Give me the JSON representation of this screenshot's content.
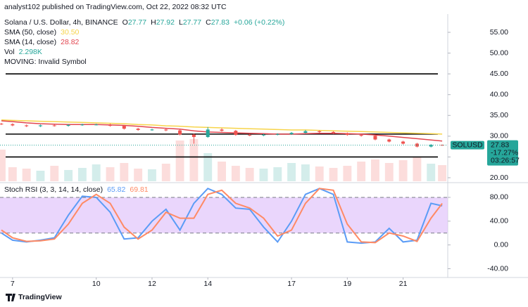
{
  "header": "analyst102 published on TradingView.com, Oct 22, 2022 08:32 UTC",
  "footer": "TradingView",
  "chart_data": [
    {
      "type": "candlestick",
      "title": "Solana / U.S. Dollar, 4h, BINANCE",
      "ohlc_legend": [
        {
          "key": "O",
          "value": 27.77
        },
        {
          "key": "H",
          "value": 27.92
        },
        {
          "key": "L",
          "value": 27.77
        },
        {
          "key": "C",
          "value": 27.83
        }
      ],
      "change_label": "+0.06 (+0.22%)",
      "x": [
        6.6,
        7,
        7.5,
        8,
        8.5,
        9,
        9.5,
        10,
        10.5,
        11,
        11.5,
        12,
        12.5,
        13,
        13.5,
        14,
        14.5,
        15,
        15.5,
        16,
        16.5,
        17,
        17.5,
        18,
        18.5,
        19,
        19.5,
        20,
        20.5,
        21,
        21.5,
        22,
        22.4
      ],
      "open": [
        33.0,
        32.9,
        32.6,
        32.4,
        32.6,
        32.5,
        32.7,
        32.8,
        32.8,
        32.5,
        31.8,
        31.5,
        31.6,
        31.4,
        30.4,
        29.8,
        31.6,
        31.3,
        30.3,
        30.2,
        30.4,
        30.5,
        30.8,
        31.2,
        31.0,
        30.7,
        30.3,
        30.1,
        29.2,
        28.7,
        28.2,
        27.5,
        27.9
      ],
      "high": [
        33.2,
        33.1,
        32.8,
        32.8,
        32.8,
        32.9,
        33.0,
        33.0,
        33.0,
        32.7,
        32.0,
        31.8,
        31.8,
        31.6,
        30.6,
        32.2,
        31.9,
        31.5,
        30.5,
        30.6,
        30.7,
        31.0,
        31.5,
        31.4,
        31.2,
        30.9,
        30.5,
        30.3,
        29.4,
        28.9,
        28.4,
        28.1,
        28.0
      ],
      "low": [
        32.7,
        32.4,
        32.2,
        32.2,
        32.3,
        32.3,
        32.5,
        32.6,
        32.3,
        31.6,
        31.3,
        31.3,
        31.2,
        30.2,
        28.2,
        29.6,
        31.1,
        30.1,
        30.0,
        30.0,
        30.2,
        30.3,
        30.6,
        30.8,
        30.5,
        30.1,
        29.9,
        29.0,
        28.5,
        28.0,
        27.3,
        27.3,
        27.7
      ],
      "close": [
        32.9,
        32.6,
        32.4,
        32.6,
        32.5,
        32.7,
        32.8,
        32.8,
        32.5,
        31.8,
        31.5,
        31.6,
        31.4,
        30.4,
        29.8,
        31.6,
        31.3,
        30.3,
        30.2,
        30.4,
        30.5,
        30.8,
        31.2,
        31.0,
        30.7,
        30.3,
        30.1,
        29.2,
        28.7,
        28.2,
        27.5,
        27.9,
        27.83
      ],
      "up_color": "#26a69a",
      "down_color": "#ef5350",
      "series": [
        {
          "name": "SMA (50, close)",
          "color": "#f7d44a",
          "legend_value": "30.50",
          "values": [
            33.9,
            33.8,
            33.7,
            33.6,
            33.5,
            33.4,
            33.3,
            33.2,
            33.1,
            33.0,
            32.8,
            32.7,
            32.5,
            32.4,
            32.2,
            32.1,
            32.0,
            31.9,
            31.8,
            31.7,
            31.6,
            31.5,
            31.5,
            31.4,
            31.3,
            31.2,
            31.1,
            31.0,
            30.9,
            30.8,
            30.7,
            30.6,
            30.5
          ]
        },
        {
          "name": "SMA (14, close)",
          "color": "#e2454f",
          "legend_value": "28.82",
          "values": [
            33.7,
            33.5,
            33.2,
            33.0,
            32.9,
            32.8,
            32.8,
            32.8,
            32.7,
            32.6,
            32.4,
            32.1,
            31.9,
            31.7,
            31.3,
            31.0,
            30.9,
            30.8,
            30.7,
            30.6,
            30.5,
            30.5,
            30.6,
            30.7,
            30.7,
            30.6,
            30.5,
            30.3,
            30.0,
            29.7,
            29.4,
            29.1,
            28.82
          ]
        }
      ],
      "volume": {
        "name": "Vol",
        "legend_value": "2.298K",
        "values": [
          4.5,
          2.0,
          1.8,
          1.5,
          2.2,
          1.6,
          1.9,
          2.4,
          2.0,
          2.6,
          1.8,
          1.7,
          2.5,
          5.8,
          6.0,
          4.0,
          2.8,
          2.2,
          1.9,
          1.8,
          2.0,
          2.6,
          2.4,
          2.1,
          1.9,
          2.2,
          2.8,
          3.1,
          2.6,
          3.0,
          3.4,
          2.5,
          2.298
        ]
      },
      "note": "MOVING: Invalid Symbol",
      "levels": [
        45,
        30.5,
        25
      ],
      "last_price_label": {
        "symbol": "SOLUSD",
        "price": 27.83,
        "change": "-17.27%",
        "countdown": "03:26:57"
      },
      "xlim": [
        6.55,
        22.6
      ],
      "ylim": [
        19.15,
        59.4
      ],
      "yticks": [
        {
          "value": 20,
          "label": "20.00"
        },
        {
          "value": 25,
          "label": "25.00"
        },
        {
          "value": 30,
          "label": "30.00"
        },
        {
          "value": 35,
          "label": "35.00"
        },
        {
          "value": 40,
          "label": "40.00"
        },
        {
          "value": 45,
          "label": "45.00"
        },
        {
          "value": 50,
          "label": "50.00"
        },
        {
          "value": 55,
          "label": "55.00"
        }
      ]
    },
    {
      "type": "line",
      "title": "Stoch RSI (3, 3, 14, 14, close)",
      "x": [
        6.6,
        7,
        7.5,
        8,
        8.5,
        9,
        9.5,
        10,
        10.5,
        11,
        11.5,
        12,
        12.5,
        13,
        13.5,
        14,
        14.5,
        15,
        15.5,
        16,
        16.5,
        17,
        17.5,
        18,
        18.5,
        19,
        19.5,
        20,
        20.5,
        21,
        21.5,
        22,
        22.4
      ],
      "series": [
        {
          "name": "K",
          "color": "#5b9cf6",
          "legend_value": "65.82",
          "values": [
            20,
            8,
            5,
            8,
            12,
            50,
            82,
            80,
            55,
            10,
            12,
            40,
            60,
            25,
            70,
            95,
            85,
            62,
            60,
            30,
            5,
            40,
            85,
            95,
            85,
            5,
            3,
            5,
            28,
            5,
            8,
            70,
            65.82
          ]
        },
        {
          "name": "D",
          "color": "#ff8a65",
          "legend_value": "69.81",
          "values": [
            25,
            12,
            6,
            7,
            10,
            35,
            70,
            85,
            70,
            30,
            10,
            25,
            55,
            45,
            45,
            85,
            92,
            70,
            62,
            45,
            15,
            25,
            70,
            95,
            92,
            35,
            5,
            4,
            20,
            15,
            6,
            45,
            69.81
          ]
        }
      ],
      "bands": [
        20,
        80
      ],
      "band_color": "#e1c4fb",
      "xlim": [
        6.55,
        22.6
      ],
      "xticks": [
        7,
        10,
        12,
        14,
        17,
        19,
        21
      ],
      "ylim": [
        -52.4,
        102.4
      ],
      "yticks": [
        {
          "value": 80,
          "label": "80.00"
        },
        {
          "value": 40,
          "label": "40.00"
        },
        {
          "value": 0,
          "label": "0.00"
        },
        {
          "value": -40,
          "label": "-40.00"
        }
      ]
    }
  ]
}
